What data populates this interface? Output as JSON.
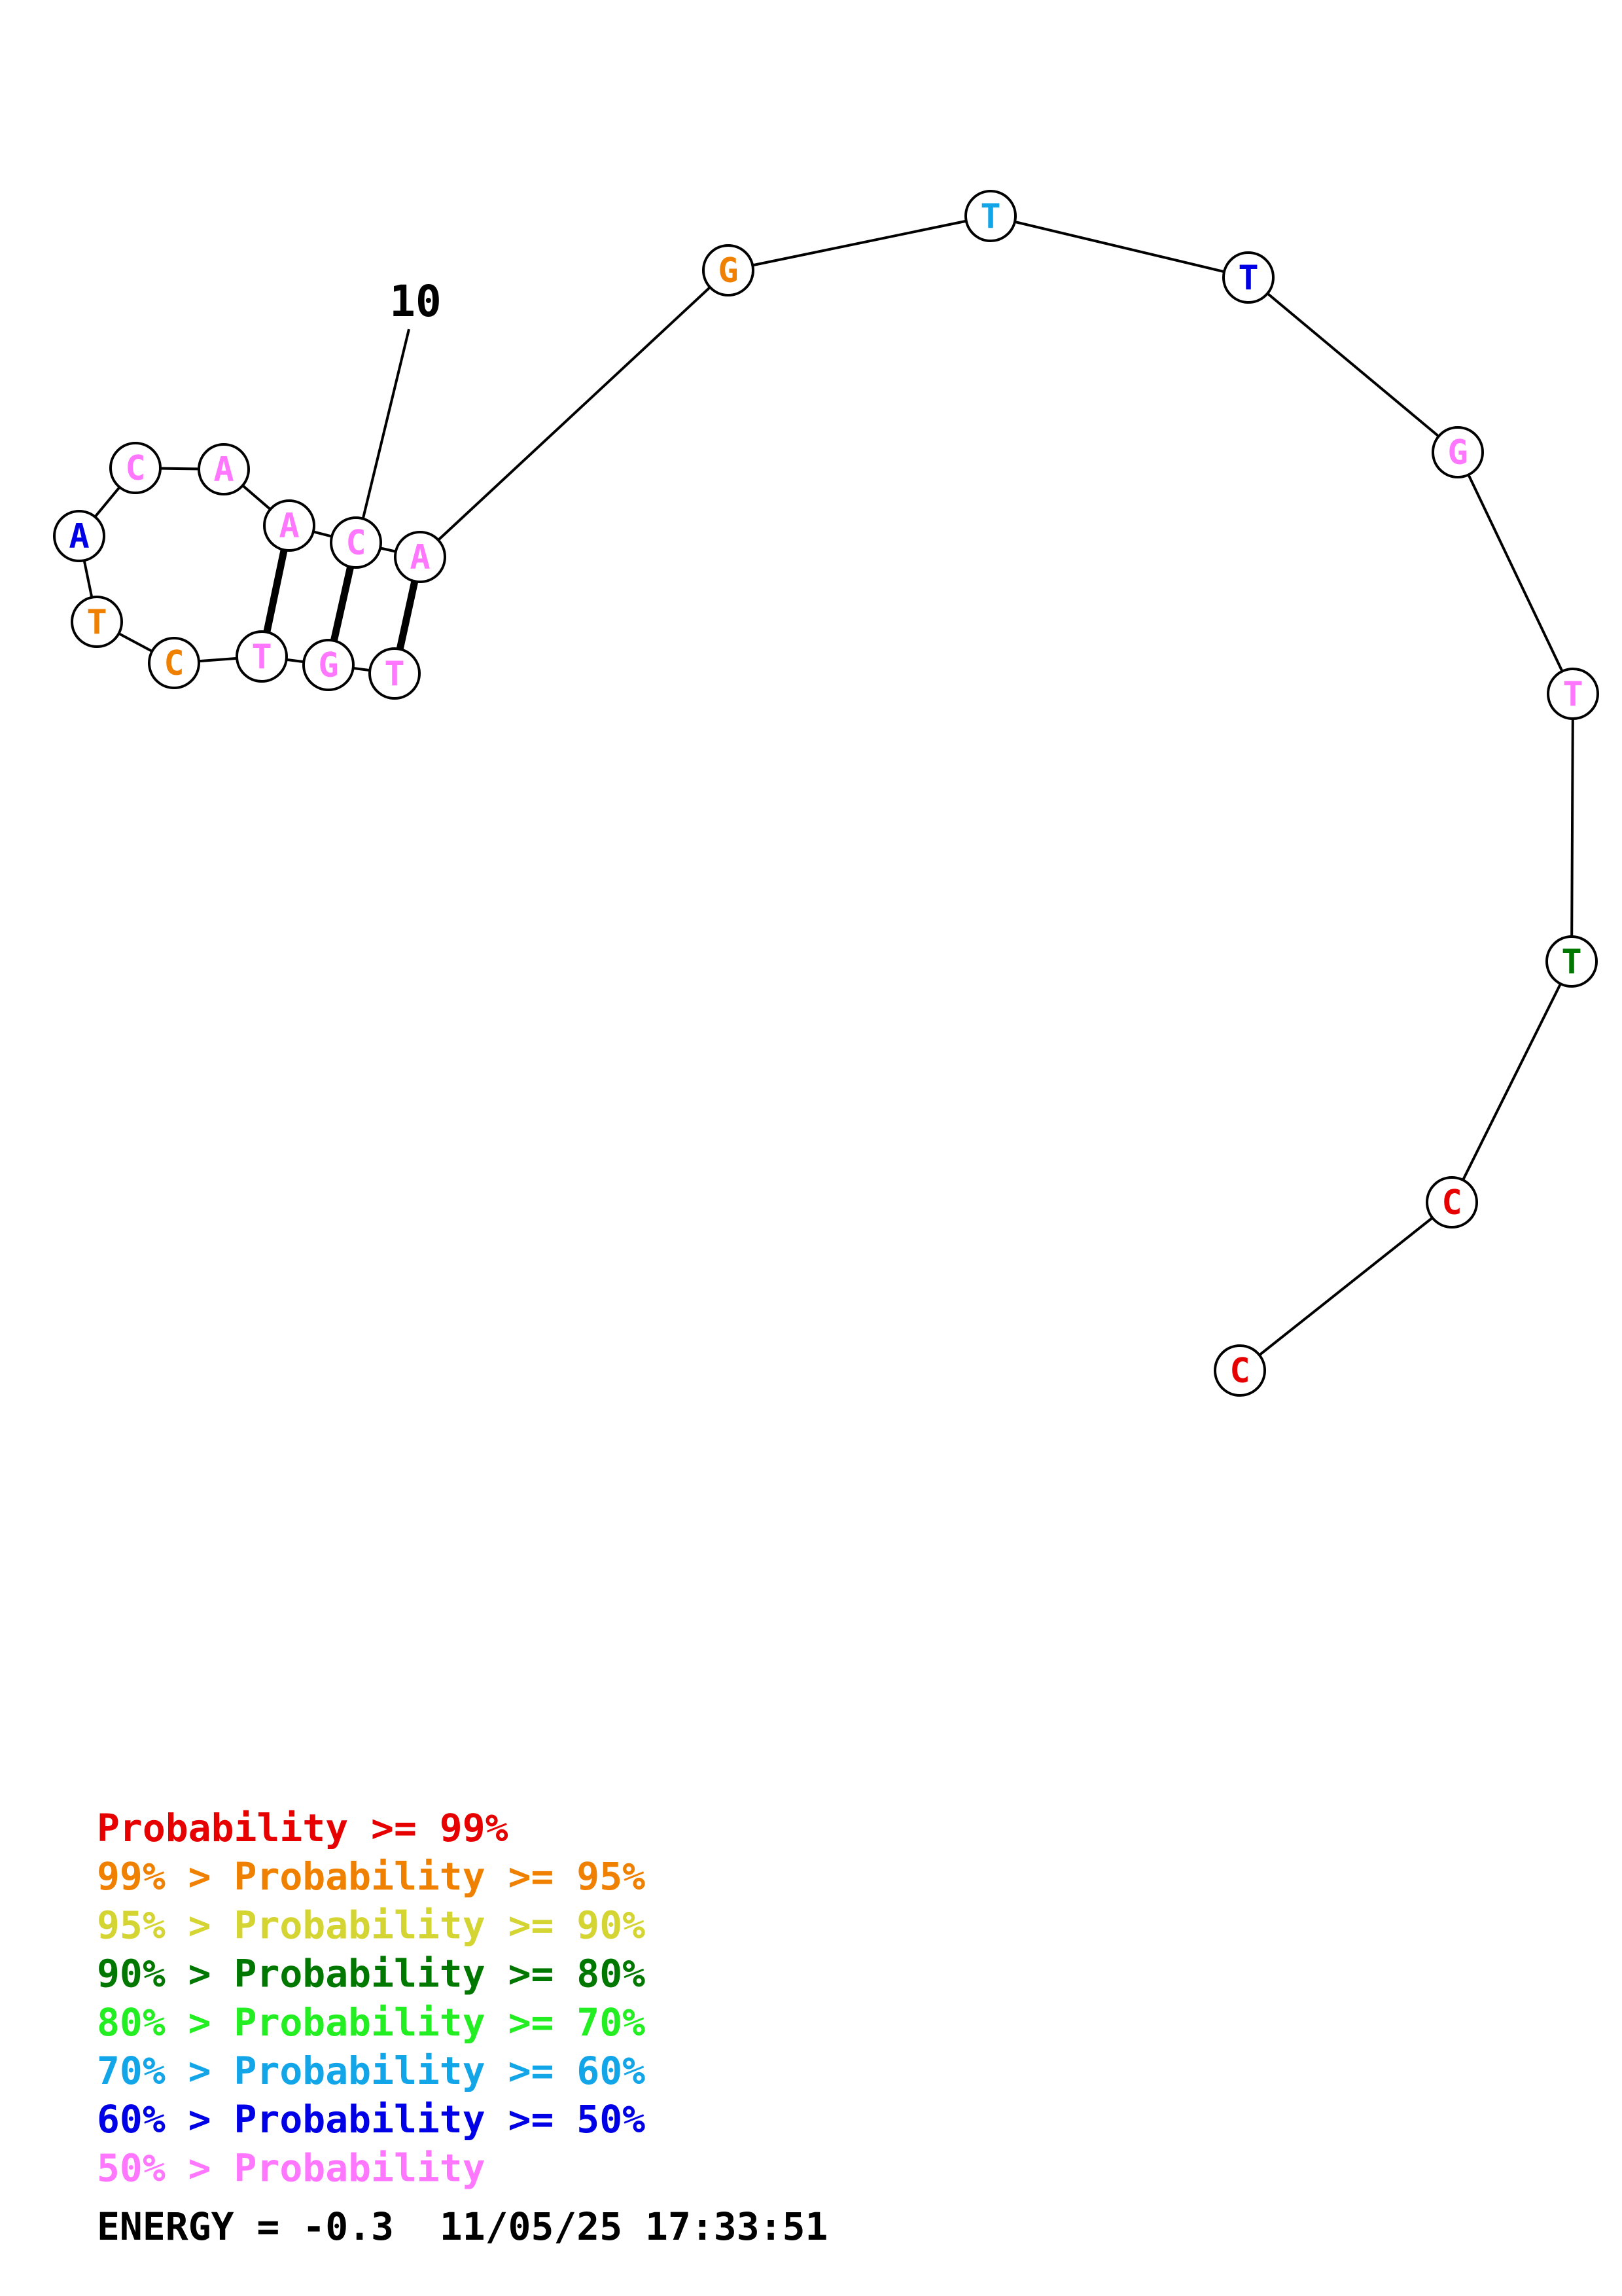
{
  "structure": {
    "nucleotides": [
      {
        "index": 1,
        "base": "T",
        "color": "#ff77ff"
      },
      {
        "index": 2,
        "base": "G",
        "color": "#ff77ff"
      },
      {
        "index": 3,
        "base": "T",
        "color": "#ff77ff"
      },
      {
        "index": 4,
        "base": "C",
        "color": "#f08000"
      },
      {
        "index": 5,
        "base": "T",
        "color": "#f08000"
      },
      {
        "index": 6,
        "base": "A",
        "color": "#0000e6"
      },
      {
        "index": 7,
        "base": "C",
        "color": "#ff77ff"
      },
      {
        "index": 8,
        "base": "A",
        "color": "#ff77ff"
      },
      {
        "index": 9,
        "base": "A",
        "color": "#ff77ff"
      },
      {
        "index": 10,
        "base": "C",
        "color": "#ff77ff"
      },
      {
        "index": 11,
        "base": "A",
        "color": "#ff77ff"
      },
      {
        "index": 12,
        "base": "G",
        "color": "#f08000"
      },
      {
        "index": 13,
        "base": "T",
        "color": "#12a5e8"
      },
      {
        "index": 14,
        "base": "T",
        "color": "#0000e6"
      },
      {
        "index": 15,
        "base": "G",
        "color": "#ff77ff"
      },
      {
        "index": 16,
        "base": "T",
        "color": "#ff77ff"
      },
      {
        "index": 17,
        "base": "T",
        "color": "#007800"
      },
      {
        "index": 18,
        "base": "C",
        "color": "#e60000"
      },
      {
        "index": 19,
        "base": "C",
        "color": "#e60000"
      }
    ],
    "pairs": [
      [
        1,
        11
      ],
      [
        2,
        10
      ],
      [
        3,
        9
      ]
    ],
    "index_label": "10"
  },
  "legend": [
    {
      "prefix": "",
      "text": "Probability >= 99%",
      "color": "#e60000"
    },
    {
      "prefix": "99% > ",
      "text": "Probability >= 95%",
      "color": "#f08000"
    },
    {
      "prefix": "95% > ",
      "text": "Probability >= 90%",
      "color": "#d4d433"
    },
    {
      "prefix": "90% > ",
      "text": "Probability >= 80%",
      "color": "#007800"
    },
    {
      "prefix": "80% > ",
      "text": "Probability >= 70%",
      "color": "#22ee22"
    },
    {
      "prefix": "70% > ",
      "text": "Probability >= 60%",
      "color": "#12a5e8"
    },
    {
      "prefix": "60% > ",
      "text": "Probability >= 50%",
      "color": "#0000e6"
    },
    {
      "prefix": "50% > ",
      "text": "Probability",
      "color": "#ff77ff"
    }
  ],
  "energy_line": "ENERGY = -0.3  11/05/25 17:33:51"
}
